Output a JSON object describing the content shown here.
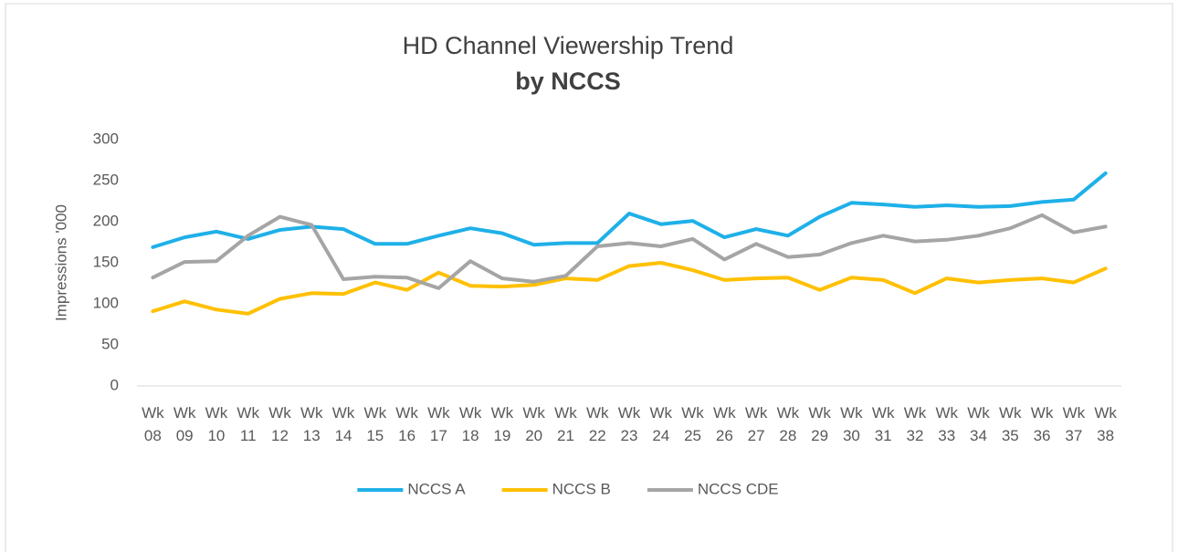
{
  "chart_data": {
    "type": "line",
    "title": "HD Channel Viewership Trend",
    "subtitle": "by NCCS",
    "y_label": "Impressions '000",
    "categories": [
      "Wk 08",
      "Wk 09",
      "Wk 10",
      "Wk 11",
      "Wk 12",
      "Wk 13",
      "Wk 14",
      "Wk 15",
      "Wk 16",
      "Wk 17",
      "Wk 18",
      "Wk 19",
      "Wk 20",
      "Wk 21",
      "Wk 22",
      "Wk 23",
      "Wk 24",
      "Wk 25",
      "Wk 26",
      "Wk 27",
      "Wk 28",
      "Wk 29",
      "Wk 30",
      "Wk 31",
      "Wk 32",
      "Wk 33",
      "Wk 34",
      "Wk 35",
      "Wk 36",
      "Wk 37",
      "Wk 38"
    ],
    "series": [
      {
        "name": "NCCS A",
        "color": "#1fb0e8",
        "values": [
          169,
          181,
          188,
          179,
          190,
          194,
          191,
          173,
          173,
          183,
          192,
          186,
          172,
          174,
          174,
          210,
          197,
          201,
          181,
          191,
          183,
          206,
          223,
          221,
          218,
          220,
          218,
          219,
          224,
          227,
          259
        ]
      },
      {
        "name": "NCCS B",
        "color": "#ffc000",
        "values": [
          91,
          103,
          93,
          88,
          106,
          113,
          112,
          126,
          117,
          138,
          122,
          121,
          123,
          131,
          129,
          146,
          150,
          141,
          129,
          131,
          132,
          117,
          132,
          129,
          113,
          131,
          126,
          129,
          131,
          126,
          143
        ]
      },
      {
        "name": "NCCS CDE",
        "color": "#a5a5a5",
        "values": [
          132,
          151,
          152,
          183,
          206,
          196,
          130,
          133,
          132,
          119,
          152,
          131,
          127,
          134,
          170,
          174,
          170,
          179,
          154,
          173,
          157,
          160,
          174,
          183,
          176,
          178,
          183,
          192,
          208,
          187,
          194
        ]
      }
    ],
    "ylim": [
      0,
      300
    ],
    "yticks": [
      0,
      50,
      100,
      150,
      200,
      250,
      300
    ],
    "grid": false,
    "legend": "bottom"
  }
}
